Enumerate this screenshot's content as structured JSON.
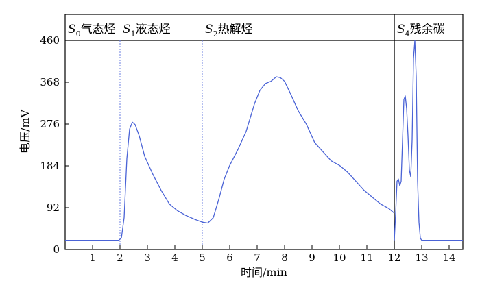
{
  "chart_data": {
    "type": "line",
    "title": "",
    "xlabel": "时间/min",
    "ylabel": "电压/mV",
    "xlim": [
      0,
      14.5
    ],
    "ylim": [
      0,
      460
    ],
    "x_ticks": [
      1,
      2,
      3,
      4,
      5,
      6,
      7,
      8,
      9,
      10,
      11,
      12,
      13,
      14
    ],
    "y_ticks": [
      0,
      92,
      184,
      276,
      368,
      460
    ],
    "line_color": "#4a63d6",
    "divider_color": "#6b7fe0",
    "grid": false,
    "regions": [
      {
        "symbol": "S",
        "sub": "0",
        "label": "气态烃",
        "start": 0,
        "end": 2.0
      },
      {
        "symbol": "S",
        "sub": "1",
        "label": "液态烃",
        "start": 2.0,
        "end": 5.0
      },
      {
        "symbol": "S",
        "sub": "2",
        "label": "热解烃",
        "start": 5.0,
        "end": 12.0
      },
      {
        "symbol": "S",
        "sub": "4",
        "label": "残余碳",
        "start": 12.0,
        "end": 14.5
      }
    ],
    "dividers": [
      {
        "x": 2.0,
        "style": "dotted"
      },
      {
        "x": 5.0,
        "style": "dotted"
      },
      {
        "x": 12.0,
        "style": "solid"
      }
    ],
    "series": [
      {
        "x": [
          0,
          1.95,
          2.05,
          2.15,
          2.25,
          2.35,
          2.45,
          2.55,
          2.7,
          2.9,
          3.2,
          3.5,
          3.8,
          4.1,
          4.4,
          4.7,
          5.0,
          5.2,
          5.4,
          5.6,
          5.8,
          6.0,
          6.3,
          6.6,
          6.9,
          7.1,
          7.3,
          7.5,
          7.7,
          7.85,
          8.0,
          8.2,
          8.5,
          8.8,
          9.1,
          9.4,
          9.7,
          10.0,
          10.3,
          10.6,
          10.9,
          11.2,
          11.5,
          11.8,
          12.0
        ],
        "y": [
          20,
          20,
          25,
          70,
          200,
          265,
          280,
          275,
          250,
          205,
          165,
          130,
          100,
          85,
          75,
          67,
          60,
          58,
          70,
          110,
          155,
          185,
          220,
          260,
          320,
          350,
          365,
          370,
          380,
          378,
          370,
          345,
          305,
          275,
          235,
          215,
          195,
          185,
          170,
          150,
          130,
          115,
          100,
          90,
          80
        ]
      },
      {
        "x": [
          12.0,
          12.05,
          12.1,
          12.15,
          12.2,
          12.25,
          12.3,
          12.35,
          12.4,
          12.45,
          12.5,
          12.55,
          12.6,
          12.65,
          12.7,
          12.75,
          12.8,
          12.85,
          12.9,
          12.95,
          13.0,
          13.1,
          14.5
        ],
        "y": [
          20,
          80,
          150,
          155,
          140,
          150,
          240,
          330,
          338,
          310,
          250,
          175,
          160,
          240,
          420,
          460,
          380,
          150,
          60,
          25,
          20,
          20,
          20
        ]
      }
    ]
  }
}
